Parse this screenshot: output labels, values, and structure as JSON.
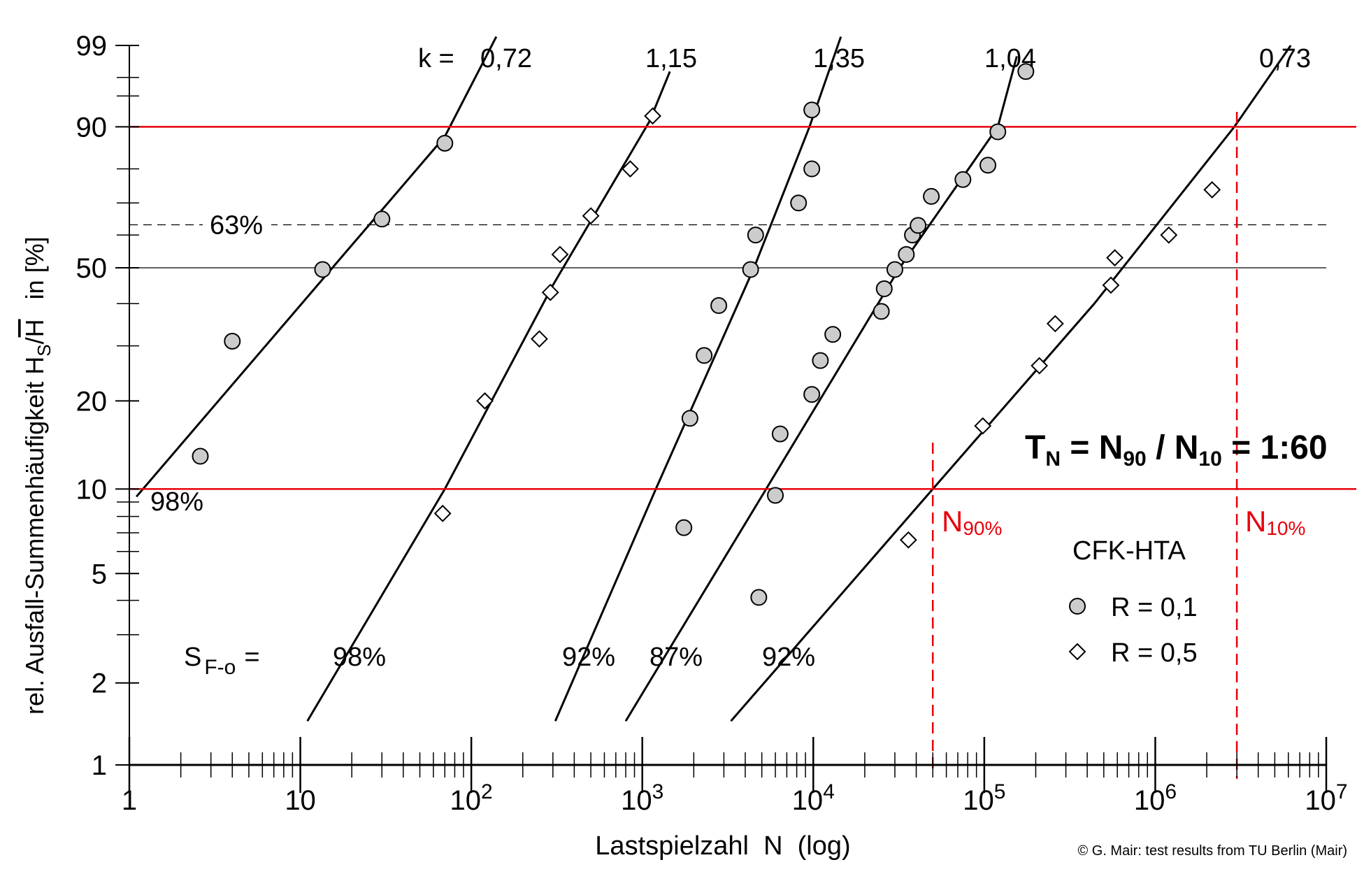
{
  "colors": {
    "line": "#000000",
    "marker_fill": "#cccccc",
    "diamond_fill": "#ffffff",
    "accent_red": "#e8000b"
  },
  "chart_data": {
    "type": "scatter",
    "title": "",
    "xlabel": "Lastspielzahl  N  (log)",
    "ylabel_parts": {
      "prefix": "rel. Ausfall-Summenhäufigkeit  H",
      "sub": "S",
      "slash": "/",
      "hbar": "H",
      "suffix": "in [%]"
    },
    "x_scale": "log10",
    "y_scale": "weibull",
    "xlim": [
      1,
      10000000
    ],
    "ylim": [
      1,
      99
    ],
    "x_ticks": [
      {
        "value": 1,
        "base": "1",
        "exp": ""
      },
      {
        "value": 10,
        "base": "10",
        "exp": ""
      },
      {
        "value": 100,
        "base": "10",
        "exp": "2"
      },
      {
        "value": 1000,
        "base": "10",
        "exp": "3"
      },
      {
        "value": 10000,
        "base": "10",
        "exp": "4"
      },
      {
        "value": 100000,
        "base": "10",
        "exp": "5"
      },
      {
        "value": 1000000,
        "base": "10",
        "exp": "6"
      },
      {
        "value": 10000000,
        "base": "10",
        "exp": "7"
      }
    ],
    "y_ticks": [
      {
        "value": 1,
        "label": "1"
      },
      {
        "value": 2,
        "label": "2"
      },
      {
        "value": 5,
        "label": "5"
      },
      {
        "value": 10,
        "label": "10"
      },
      {
        "value": 20,
        "label": "20"
      },
      {
        "value": 50,
        "label": "50"
      },
      {
        "value": 90,
        "label": "90"
      },
      {
        "value": 99,
        "label": "99"
      }
    ],
    "y_minor_ticks": [
      3,
      4,
      6,
      7,
      8,
      9,
      30,
      40,
      60,
      70,
      80,
      95,
      97
    ],
    "reference_lines": [
      {
        "y": 63.2,
        "label": "63%",
        "style": "dashed"
      },
      {
        "y": 50,
        "label": "",
        "style": "solid"
      }
    ],
    "series": [
      {
        "k_label": "0,72",
        "marker": "circle",
        "s_label": "98%",
        "fit": [
          [
            1.1,
            9.4
          ],
          [
            70.0,
            88
          ],
          [
            140.0,
            99.3
          ]
        ],
        "points": [
          [
            2.6,
            13
          ],
          [
            4,
            31
          ],
          [
            13.5,
            49.5
          ],
          [
            30,
            65
          ],
          [
            70,
            86.5
          ]
        ]
      },
      {
        "k_label": "1,15",
        "marker": "diamond",
        "s_label": "98%",
        "fit": [
          [
            11,
            1.45
          ],
          [
            70,
            10
          ],
          [
            300,
            45
          ],
          [
            1100.0,
            91
          ],
          [
            1450.0,
            97.5
          ]
        ],
        "points": [
          [
            68,
            8.2
          ],
          [
            120,
            20
          ],
          [
            250,
            31.5
          ],
          [
            290,
            43
          ],
          [
            330,
            54
          ],
          [
            500,
            66
          ],
          [
            850,
            80
          ],
          [
            1150.0,
            92
          ]
        ]
      },
      {
        "k_label": "1,35",
        "marker": "circle",
        "s_label": "92%",
        "fit": [
          [
            310,
            1.45
          ],
          [
            1200.0,
            10
          ],
          [
            4500.0,
            50
          ],
          [
            9500.0,
            90
          ],
          [
            14500.0,
            99.3
          ]
        ],
        "points": [
          [
            1750.0,
            7.3
          ],
          [
            1900.0,
            17.5
          ],
          [
            2300.0,
            28
          ],
          [
            2800.0,
            39.5
          ],
          [
            4300.0,
            49.5
          ],
          [
            4600.0,
            60
          ],
          [
            8200.0,
            70
          ],
          [
            9800.0,
            80
          ],
          [
            9800.0,
            93
          ]
        ]
      },
      {
        "k_label": "1,04",
        "marker": "circle",
        "s_label": "87%",
        "fit": [
          [
            800,
            1.45
          ],
          [
            5300.0,
            10
          ],
          [
            32000.0,
            50
          ],
          [
            120000.0,
            90
          ],
          [
            155000.0,
            98.5
          ]
        ],
        "points": [
          [
            4800.0,
            4.1
          ],
          [
            6000.0,
            9.5
          ],
          [
            6400.0,
            15.5
          ],
          [
            9800.0,
            21
          ],
          [
            11000.0,
            27
          ],
          [
            13000.0,
            32.5
          ],
          [
            25000.0,
            38
          ],
          [
            26000.0,
            44
          ],
          [
            30000.0,
            49.5
          ],
          [
            35000.0,
            54
          ],
          [
            38000.0,
            60
          ],
          [
            41000.0,
            63
          ],
          [
            49000.0,
            72
          ],
          [
            75000.0,
            77
          ],
          [
            105000.0,
            81
          ],
          [
            120000.0,
            89
          ],
          [
            175000.0,
            97.5
          ]
        ]
      },
      {
        "k_label": "0,73",
        "marker": "diamond",
        "s_label": "92%",
        "fit": [
          [
            3300.0,
            1.45
          ],
          [
            50000.0,
            10
          ],
          [
            440000.0,
            40
          ],
          [
            2900000.0,
            90
          ],
          [
            6200000.0,
            99
          ]
        ],
        "points": [
          [
            36000.0,
            6.6
          ],
          [
            98000.0,
            16.5
          ],
          [
            210000.0,
            26
          ],
          [
            260000.0,
            35
          ],
          [
            550000.0,
            45
          ],
          [
            580000.0,
            53
          ],
          [
            1200000.0,
            60
          ],
          [
            2150000.0,
            74
          ]
        ]
      }
    ],
    "k_prefix": "k =",
    "s_prefix": {
      "base": "S",
      "sub": "F-o",
      "eq": "="
    },
    "left_98_label": "98%",
    "red_lines": {
      "y_levels": [
        90,
        10
      ],
      "n90_x": 50000,
      "n10_x": 3000000
    },
    "annotations": {
      "n90": {
        "base": "N",
        "sub": "90%"
      },
      "n10": {
        "base": "N",
        "sub": "10%"
      },
      "ratio": {
        "t": "T",
        "t_sub": "N",
        "eq1": " = N",
        "n90_sub": "90",
        "slash": " / N",
        "n10_sub": "10",
        "eq2": " = 1:60"
      }
    },
    "legend": {
      "title": "CFK-HTA",
      "items": [
        {
          "marker": "circle",
          "label": "R = 0,1"
        },
        {
          "marker": "diamond",
          "label": "R = 0,5"
        }
      ]
    },
    "credit": "© G. Mair: test results from TU Berlin (Mair)"
  }
}
